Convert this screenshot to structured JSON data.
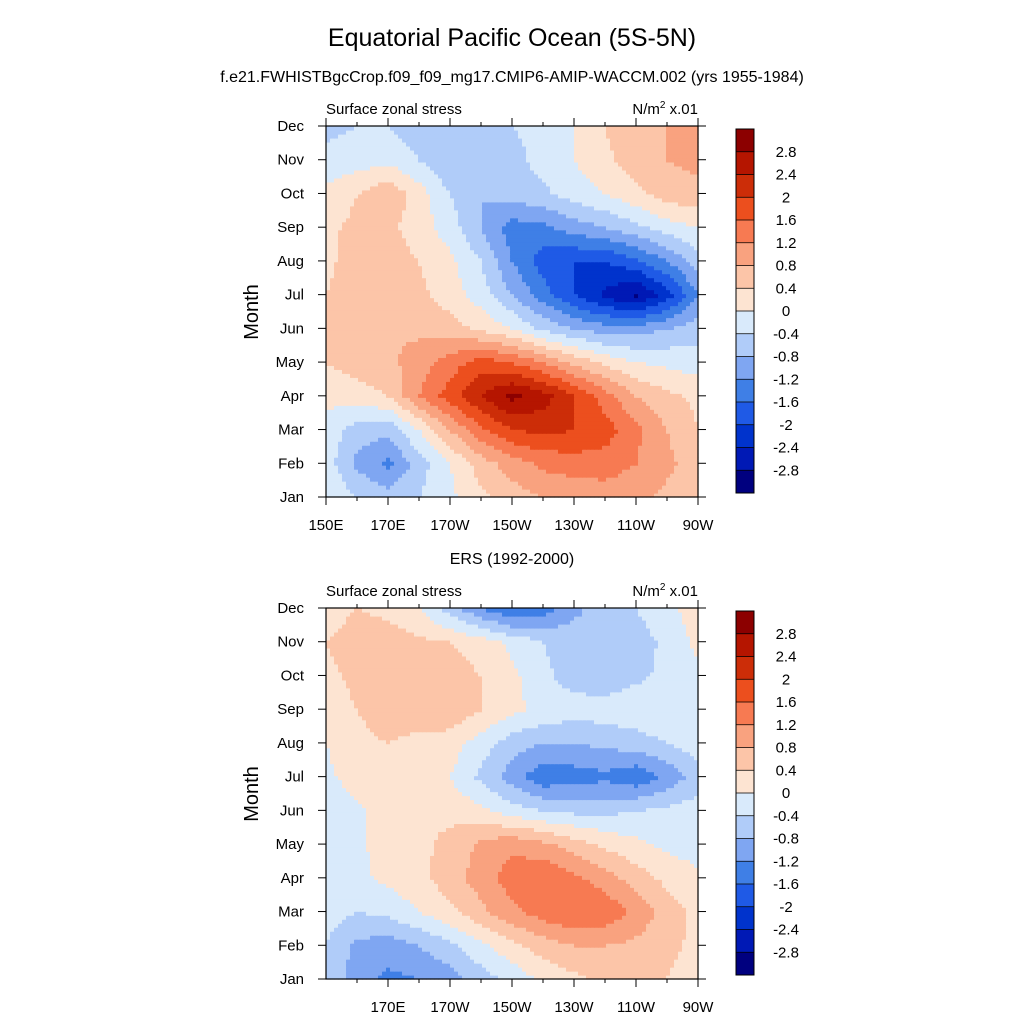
{
  "figure": {
    "title": "Equatorial Pacific Ocean (5S-5N)"
  },
  "contour_levels": [
    "-2.8",
    "-2.4",
    "-2",
    "-1.6",
    "-1.2",
    "-0.8",
    "-0.4",
    "0",
    "0.4",
    "0.8",
    "1.2",
    "1.6",
    "2",
    "2.4",
    "2.8"
  ],
  "colors": [
    "#00007f",
    "#0019b5",
    "#0033cc",
    "#1f5ae6",
    "#3f7fe6",
    "#7fa6f2",
    "#b0ccf9",
    "#d9eafb",
    "#fde4d2",
    "#fcc5a8",
    "#f9a27f",
    "#f77a52",
    "#ec4f1e",
    "#cc2d08",
    "#b51500",
    "#8c0000"
  ],
  "chart_data": [
    {
      "type": "heatmap",
      "subtitle": "f.e21.FWHISTBgcCrop.f09_f09_mg17.CMIP6-AMIP-WACCM.002 (yrs 1955-1984)",
      "left_label": "Surface zonal stress",
      "units_base": "N/m",
      "units_sup": "2",
      "units_suffix": " x.01",
      "ylabel": "Month",
      "x_ticks": [
        150,
        170,
        190,
        210,
        230,
        250,
        270
      ],
      "x_tick_labels": [
        "150E",
        "170E",
        "170W",
        "150W",
        "130W",
        "110W",
        "90W"
      ],
      "xlim": [
        150,
        270
      ],
      "y_ticks": [
        0,
        1,
        2,
        3,
        4,
        5,
        6,
        7,
        8,
        9,
        10,
        11
      ],
      "y_tick_labels": [
        "Jan",
        "Feb",
        "Mar",
        "Apr",
        "May",
        "Jun",
        "Jul",
        "Aug",
        "Sep",
        "Oct",
        "Nov",
        "Dec"
      ],
      "ylim": [
        0,
        11
      ],
      "lon": [
        150,
        160,
        170,
        180,
        190,
        200,
        210,
        220,
        230,
        240,
        250,
        260,
        270
      ],
      "months": [
        "Jan",
        "Feb",
        "Mar",
        "Apr",
        "May",
        "Jun",
        "Jul",
        "Aug",
        "Sep",
        "Oct",
        "Nov",
        "Dec"
      ],
      "values": [
        [
          0.0,
          -0.4,
          -0.6,
          -0.4,
          -0.1,
          0.3,
          0.6,
          0.8,
          0.9,
          1.0,
          0.9,
          0.7,
          0.5
        ],
        [
          -0.2,
          -0.9,
          -1.3,
          -0.6,
          0.0,
          0.6,
          1.0,
          1.3,
          1.4,
          1.4,
          1.2,
          0.9,
          0.6
        ],
        [
          -0.1,
          -0.6,
          -0.7,
          0.0,
          0.8,
          1.5,
          2.0,
          2.1,
          2.0,
          1.8,
          1.3,
          0.8,
          0.4
        ],
        [
          0.1,
          0.2,
          0.4,
          1.2,
          1.8,
          2.4,
          2.9,
          2.6,
          2.0,
          1.4,
          0.8,
          0.5,
          0.3
        ],
        [
          0.4,
          0.6,
          0.7,
          1.0,
          1.4,
          1.8,
          1.6,
          1.2,
          0.7,
          0.3,
          0.0,
          -0.1,
          -0.2
        ],
        [
          0.6,
          0.8,
          0.8,
          0.7,
          0.6,
          0.3,
          0.0,
          -0.5,
          -0.8,
          -1.0,
          -1.0,
          -0.8,
          -0.6
        ],
        [
          0.4,
          0.8,
          0.7,
          0.5,
          0.2,
          -0.2,
          -0.8,
          -1.4,
          -2.0,
          -2.5,
          -2.9,
          -2.2,
          -1.2
        ],
        [
          0.2,
          0.8,
          0.6,
          0.4,
          0.1,
          -0.4,
          -1.2,
          -1.8,
          -2.0,
          -2.0,
          -1.7,
          -1.2,
          -0.6
        ],
        [
          0.3,
          0.5,
          0.5,
          0.2,
          -0.2,
          -0.8,
          -1.4,
          -1.3,
          -1.0,
          -0.8,
          -0.5,
          -0.2,
          0.0
        ],
        [
          0.1,
          0.4,
          0.7,
          0.2,
          -0.4,
          -0.8,
          -0.6,
          -0.5,
          -0.2,
          0.0,
          0.3,
          0.6,
          0.7
        ],
        [
          -0.3,
          -0.2,
          -0.1,
          -0.4,
          -0.8,
          -0.7,
          -0.6,
          -0.2,
          0.0,
          0.3,
          0.6,
          0.8,
          0.9
        ],
        [
          -0.5,
          -0.4,
          -0.4,
          -0.6,
          -0.8,
          -0.7,
          -0.4,
          -0.2,
          0.0,
          0.4,
          0.8,
          0.8,
          0.9
        ]
      ]
    },
    {
      "type": "heatmap",
      "subtitle": "ERS (1992-2000)",
      "left_label": "Surface zonal stress",
      "units_base": "N/m",
      "units_sup": "2",
      "units_suffix": " x.01",
      "ylabel": "Month",
      "x_ticks": [
        170,
        190,
        210,
        230,
        250,
        270
      ],
      "x_tick_labels": [
        "170E",
        "170W",
        "150W",
        "130W",
        "110W",
        "90W"
      ],
      "xlim": [
        150,
        270
      ],
      "y_ticks": [
        0,
        1,
        2,
        3,
        4,
        5,
        6,
        7,
        8,
        9,
        10,
        11
      ],
      "y_tick_labels": [
        "Jan",
        "Feb",
        "Mar",
        "Apr",
        "May",
        "Jun",
        "Jul",
        "Aug",
        "Sep",
        "Oct",
        "Nov",
        "Dec"
      ],
      "ylim": [
        0,
        11
      ],
      "lon": [
        150,
        160,
        170,
        180,
        190,
        200,
        210,
        220,
        230,
        240,
        250,
        260,
        270
      ],
      "months": [
        "Jan",
        "Feb",
        "Mar",
        "Apr",
        "May",
        "Jun",
        "Jul",
        "Aug",
        "Sep",
        "Oct",
        "Nov",
        "Dec"
      ],
      "values": [
        [
          -0.5,
          -1.0,
          -1.3,
          -1.2,
          -1.0,
          -0.6,
          -0.3,
          0.1,
          0.3,
          0.5,
          0.5,
          0.4,
          0.2
        ],
        [
          -0.4,
          -0.9,
          -1.0,
          -0.8,
          -0.5,
          -0.1,
          0.3,
          0.6,
          0.8,
          0.8,
          0.7,
          0.5,
          0.3
        ],
        [
          -0.2,
          -0.4,
          -0.3,
          0.0,
          0.3,
          0.7,
          1.1,
          1.4,
          1.6,
          1.5,
          1.1,
          0.6,
          0.3
        ],
        [
          -0.1,
          -0.1,
          0.1,
          0.3,
          0.6,
          1.0,
          1.4,
          1.6,
          1.3,
          1.0,
          0.6,
          0.3,
          0.1
        ],
        [
          -0.2,
          -0.1,
          0.2,
          0.3,
          0.5,
          0.9,
          1.1,
          0.9,
          0.6,
          0.3,
          0.1,
          -0.1,
          -0.2
        ],
        [
          -0.3,
          -0.1,
          0.3,
          0.4,
          0.3,
          0.1,
          -0.2,
          -0.4,
          -0.5,
          -0.5,
          -0.4,
          -0.3,
          -0.2
        ],
        [
          -0.1,
          0.2,
          0.3,
          0.2,
          0.0,
          -0.5,
          -1.0,
          -1.5,
          -1.4,
          -1.3,
          -1.5,
          -1.1,
          -0.6
        ],
        [
          0.0,
          0.3,
          0.4,
          0.3,
          0.2,
          -0.2,
          -0.6,
          -0.8,
          -0.8,
          -0.7,
          -0.6,
          -0.4,
          -0.2
        ],
        [
          0.2,
          0.4,
          0.6,
          0.6,
          0.7,
          0.4,
          0.1,
          -0.1,
          -0.2,
          -0.2,
          -0.1,
          0.0,
          0.0
        ],
        [
          0.3,
          0.5,
          0.6,
          0.6,
          0.6,
          0.4,
          0.1,
          -0.3,
          -0.6,
          -0.7,
          -0.5,
          -0.3,
          -0.1
        ],
        [
          0.4,
          0.6,
          0.6,
          0.5,
          0.4,
          0.2,
          -0.1,
          -0.4,
          -0.6,
          -0.7,
          -0.6,
          -0.3,
          0.1
        ],
        [
          0.2,
          0.4,
          0.3,
          0.0,
          -0.6,
          -1.2,
          -1.6,
          -1.4,
          -0.9,
          -0.6,
          -0.4,
          -0.1,
          0.2
        ]
      ]
    }
  ]
}
